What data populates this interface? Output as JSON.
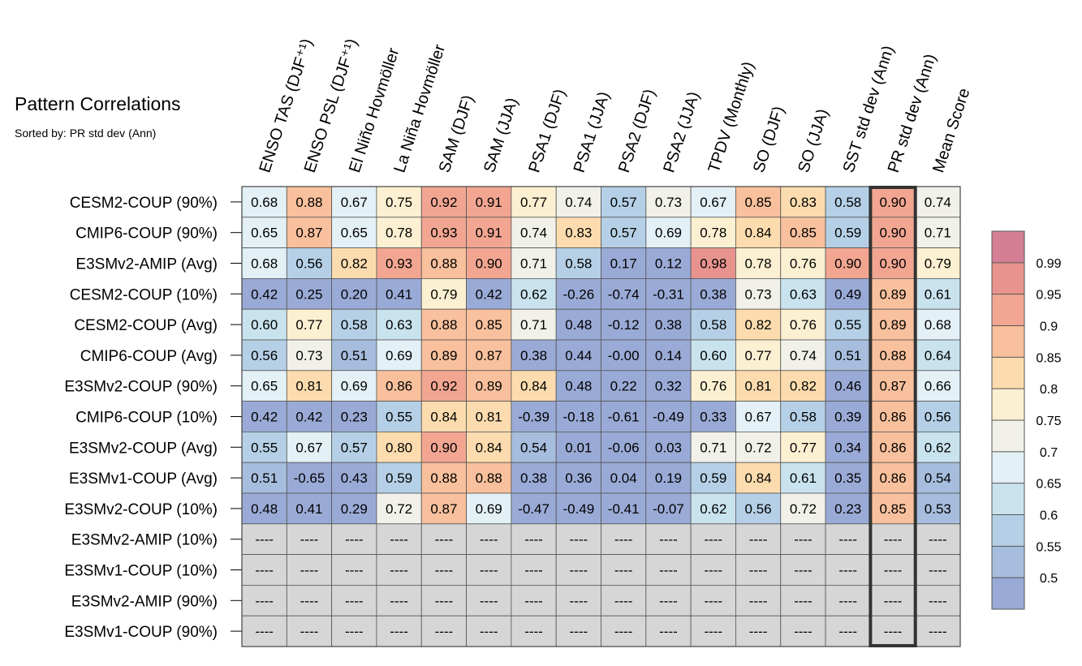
{
  "title": "Pattern Correlations",
  "subtitle": "Sorted by: PR std dev (Ann)",
  "chart_data": {
    "type": "heatmap",
    "columns": [
      "ENSO TAS (DJF⁺¹)",
      "ENSO PSL (DJF⁺¹)",
      "El Niño Hovmöller",
      "La Niña Hovmöller",
      "SAM (DJF)",
      "SAM (JJA)",
      "PSA1 (DJF)",
      "PSA1 (JJA)",
      "PSA2 (DJF)",
      "PSA2 (JJA)",
      "TPDV (Monthly)",
      "SO (DJF)",
      "SO (JJA)",
      "SST std dev (Ann)",
      "PR std dev (Ann)",
      "Mean Score"
    ],
    "rows": [
      "CESM2-COUP (90%)",
      "CMIP6-COUP (90%)",
      "E3SMv2-AMIP (Avg)",
      "CESM2-COUP (10%)",
      "CESM2-COUP (Avg)",
      "CMIP6-COUP (Avg)",
      "E3SMv2-COUP (90%)",
      "CMIP6-COUP (10%)",
      "E3SMv2-COUP (Avg)",
      "E3SMv1-COUP (Avg)",
      "E3SMv2-COUP (10%)",
      "E3SMv2-AMIP (10%)",
      "E3SMv1-COUP (10%)",
      "E3SMv2-AMIP (90%)",
      "E3SMv1-COUP (90%)"
    ],
    "values": [
      [
        "0.68",
        "0.88",
        "0.67",
        "0.75",
        "0.92",
        "0.91",
        "0.77",
        "0.74",
        "0.57",
        "0.73",
        "0.67",
        "0.85",
        "0.83",
        "0.58",
        "0.90",
        "0.74"
      ],
      [
        "0.65",
        "0.87",
        "0.65",
        "0.78",
        "0.93",
        "0.91",
        "0.74",
        "0.83",
        "0.57",
        "0.69",
        "0.78",
        "0.84",
        "0.85",
        "0.59",
        "0.90",
        "0.71"
      ],
      [
        "0.68",
        "0.56",
        "0.82",
        "0.93",
        "0.88",
        "0.90",
        "0.71",
        "0.58",
        "0.17",
        "0.12",
        "0.98",
        "0.78",
        "0.76",
        "0.90",
        "0.90",
        "0.79"
      ],
      [
        "0.42",
        "0.25",
        "0.20",
        "0.41",
        "0.79",
        "0.42",
        "0.62",
        "-0.26",
        "-0.74",
        "-0.31",
        "0.38",
        "0.73",
        "0.63",
        "0.49",
        "0.89",
        "0.61"
      ],
      [
        "0.60",
        "0.77",
        "0.58",
        "0.63",
        "0.88",
        "0.85",
        "0.71",
        "0.48",
        "-0.12",
        "0.38",
        "0.58",
        "0.82",
        "0.76",
        "0.55",
        "0.89",
        "0.68"
      ],
      [
        "0.56",
        "0.73",
        "0.51",
        "0.69",
        "0.89",
        "0.87",
        "0.38",
        "0.44",
        "-0.00",
        "0.14",
        "0.60",
        "0.77",
        "0.74",
        "0.51",
        "0.88",
        "0.64"
      ],
      [
        "0.65",
        "0.81",
        "0.69",
        "0.86",
        "0.92",
        "0.89",
        "0.84",
        "0.48",
        "0.22",
        "0.32",
        "0.76",
        "0.81",
        "0.82",
        "0.46",
        "0.87",
        "0.66"
      ],
      [
        "0.42",
        "0.42",
        "0.23",
        "0.55",
        "0.84",
        "0.81",
        "-0.39",
        "-0.18",
        "-0.61",
        "-0.49",
        "0.33",
        "0.67",
        "0.58",
        "0.39",
        "0.86",
        "0.56"
      ],
      [
        "0.55",
        "0.67",
        "0.57",
        "0.80",
        "0.90",
        "0.84",
        "0.54",
        "0.01",
        "-0.06",
        "0.03",
        "0.71",
        "0.72",
        "0.77",
        "0.34",
        "0.86",
        "0.62"
      ],
      [
        "0.51",
        "-0.65",
        "0.43",
        "0.59",
        "0.88",
        "0.88",
        "0.38",
        "0.36",
        "0.04",
        "0.19",
        "0.59",
        "0.84",
        "0.61",
        "0.35",
        "0.86",
        "0.54"
      ],
      [
        "0.48",
        "0.41",
        "0.29",
        "0.72",
        "0.87",
        "0.69",
        "-0.47",
        "-0.49",
        "-0.41",
        "-0.07",
        "0.62",
        "0.56",
        "0.72",
        "0.23",
        "0.85",
        "0.53"
      ],
      [
        "----",
        "----",
        "----",
        "----",
        "----",
        "----",
        "----",
        "----",
        "----",
        "----",
        "----",
        "----",
        "----",
        "----",
        "----",
        "----"
      ],
      [
        "----",
        "----",
        "----",
        "----",
        "----",
        "----",
        "----",
        "----",
        "----",
        "----",
        "----",
        "----",
        "----",
        "----",
        "----",
        "----"
      ],
      [
        "----",
        "----",
        "----",
        "----",
        "----",
        "----",
        "----",
        "----",
        "----",
        "----",
        "----",
        "----",
        "----",
        "----",
        "----",
        "----"
      ],
      [
        "----",
        "----",
        "----",
        "----",
        "----",
        "----",
        "----",
        "----",
        "----",
        "----",
        "----",
        "----",
        "----",
        "----",
        "----",
        "----"
      ]
    ],
    "highlighted_column": "PR std dev (Ann)",
    "colorbar": {
      "ticks": [
        "0.99",
        "0.95",
        "0.9",
        "0.85",
        "0.8",
        "0.75",
        "0.7",
        "0.65",
        "0.6",
        "0.55",
        "0.5"
      ],
      "colors": [
        "#d57f95",
        "#e8938e",
        "#f2a692",
        "#f8c09c",
        "#fcdcae",
        "#fbf0d1",
        "#f1f1ea",
        "#e3f0f5",
        "#c9e3ee",
        "#b5d0e6",
        "#a6bddd",
        "#9aaad6"
      ],
      "missing_color": "#d6d6d6"
    }
  }
}
